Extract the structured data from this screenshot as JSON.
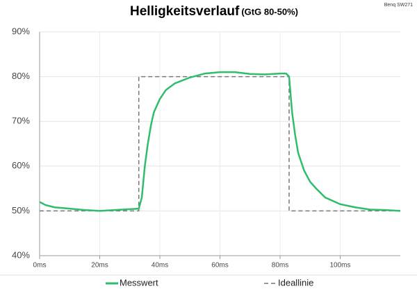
{
  "chart_data": {
    "type": "line",
    "title": "Helligkeitsverlauf",
    "subtitle": "(GtG 80-50%)",
    "annotation": "Benq SW271",
    "xlim": [
      0,
      120
    ],
    "xticks": [
      {
        "value": 0,
        "label": "0ms"
      },
      {
        "value": 20,
        "label": "20ms"
      },
      {
        "value": 40,
        "label": "40ms"
      },
      {
        "value": 60,
        "label": "60ms"
      },
      {
        "value": 80,
        "label": "80ms"
      },
      {
        "value": 100,
        "label": "100ms"
      }
    ],
    "ylim": [
      40,
      90
    ],
    "yticks": [
      {
        "value": 40,
        "label": "40%"
      },
      {
        "value": 50,
        "label": "50%"
      },
      {
        "value": 60,
        "label": "60%"
      },
      {
        "value": 70,
        "label": "70%"
      },
      {
        "value": 80,
        "label": "80%"
      },
      {
        "value": 90,
        "label": "90%"
      }
    ],
    "grid": true,
    "legend": "bottom",
    "series": [
      {
        "name": "Messwert",
        "color": "#2ebd6b",
        "style": "solid",
        "x": [
          0,
          2,
          5,
          10,
          15,
          20,
          25,
          30,
          33,
          34,
          35,
          36,
          37,
          38,
          40,
          42,
          45,
          50,
          55,
          60,
          65,
          70,
          75,
          80,
          82,
          83,
          84,
          85,
          86,
          88,
          90,
          92,
          95,
          100,
          105,
          110,
          115,
          120
        ],
        "values": [
          52,
          51.3,
          50.8,
          50.5,
          50.2,
          50,
          50.2,
          50.4,
          50.5,
          53,
          60,
          65,
          69,
          72,
          75,
          77,
          78.5,
          79.8,
          80.7,
          81,
          81,
          80.6,
          80.5,
          80.7,
          80.7,
          80,
          72,
          67,
          63,
          59,
          56.5,
          55,
          53,
          51.5,
          50.8,
          50.3,
          50.2,
          50
        ]
      },
      {
        "name": "Ideallinie",
        "color": "#777777",
        "style": "dashed",
        "x": [
          0,
          33,
          33,
          83,
          83,
          120
        ],
        "values": [
          50,
          50,
          80,
          80,
          50,
          50
        ]
      }
    ]
  }
}
